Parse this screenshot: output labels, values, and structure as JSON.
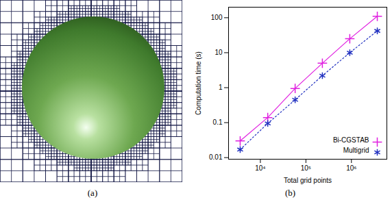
{
  "panel_captions": [
    "(a)",
    "(b)"
  ],
  "chart_data": {
    "type": "line",
    "log": true,
    "x_label": "Total grid points",
    "y_label": "Computation time (s)",
    "x": [
      3600,
      14500,
      58000,
      230000,
      920000,
      3700000
    ],
    "xlim": [
      2000,
      6000000
    ],
    "xticks": [
      {
        "value": 10000,
        "label": "10⁴"
      },
      {
        "value": 100000,
        "label": "10⁵"
      },
      {
        "value": 1000000,
        "label": "10⁶"
      }
    ],
    "ylim": [
      0.009,
      200
    ],
    "yticks": [
      0.01,
      0.1,
      1,
      10,
      100
    ],
    "legend": "bottom-right",
    "series": [
      {
        "name": "Bi-CGSTAB",
        "color": "#e020e0",
        "marker": "plus",
        "line_style": "solid",
        "values": [
          0.03,
          0.14,
          0.95,
          5,
          25,
          110
        ]
      },
      {
        "name": "Multigrid",
        "color": "#2030c0",
        "marker": "asterisk",
        "line_style": "dotted",
        "values": [
          0.017,
          0.095,
          0.45,
          2.2,
          10,
          42
        ]
      }
    ]
  }
}
